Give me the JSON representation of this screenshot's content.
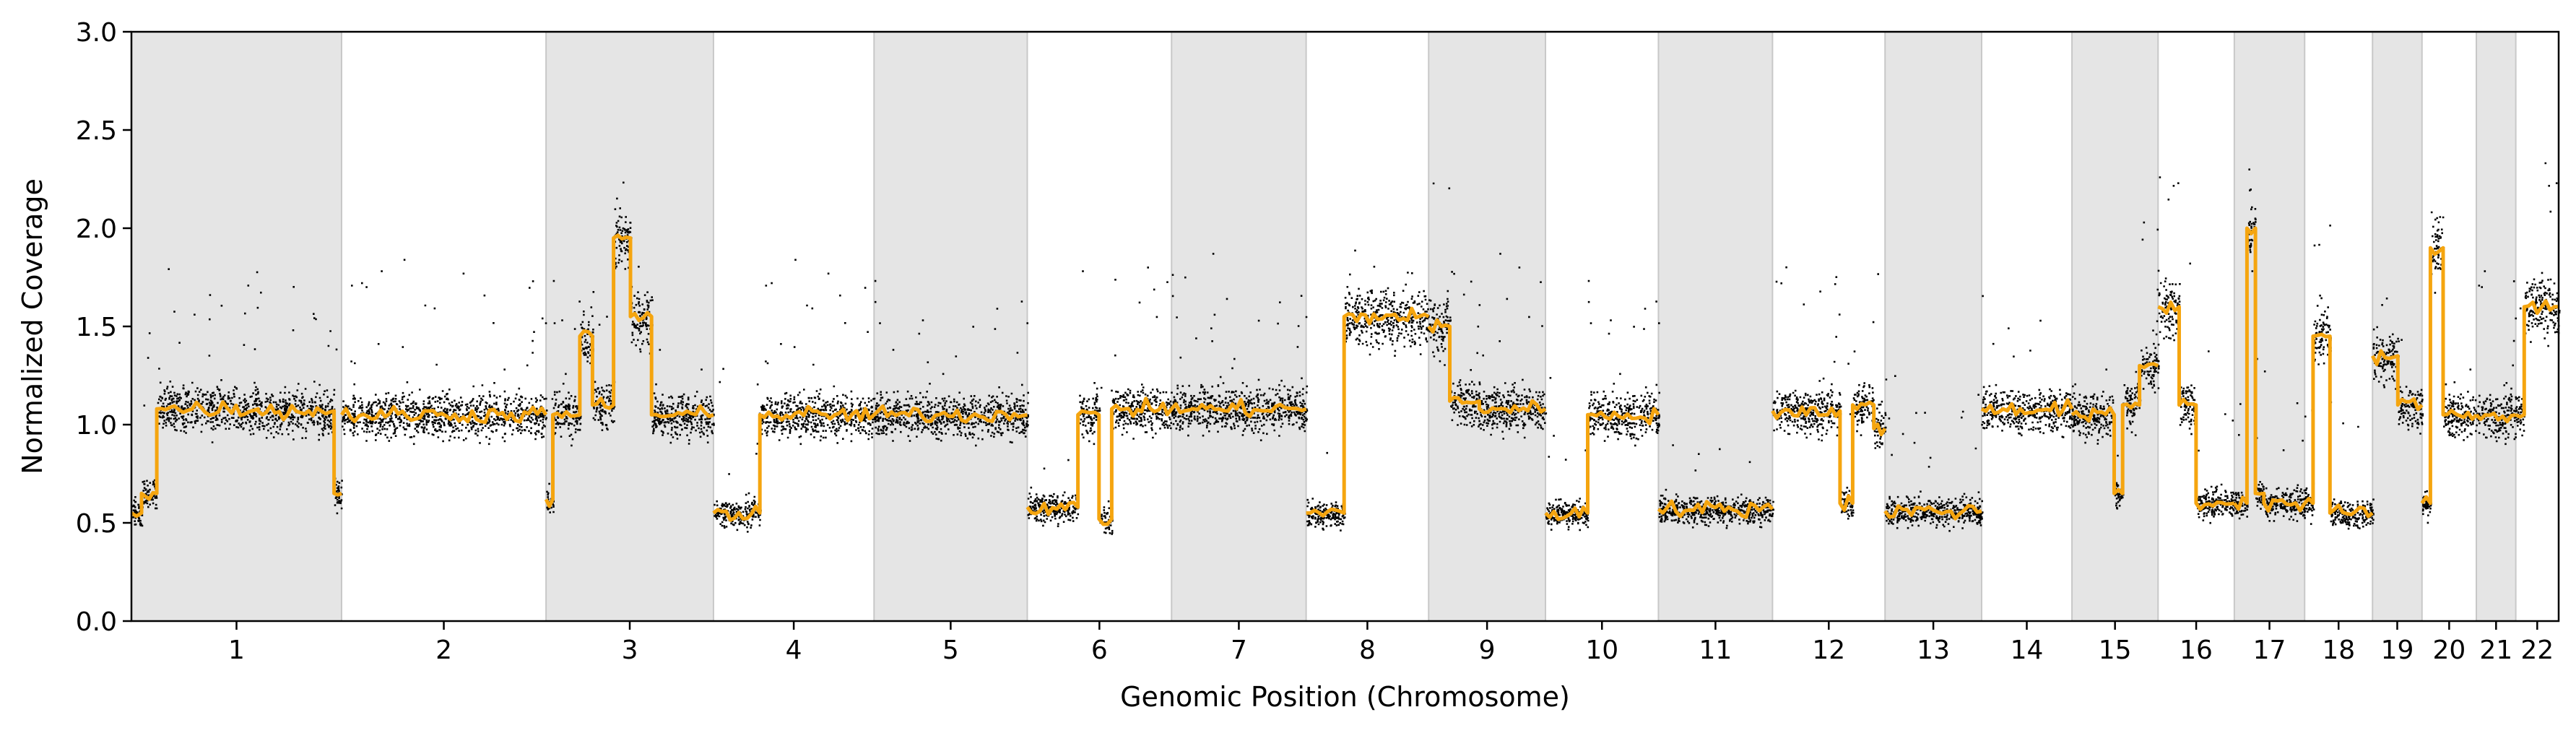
{
  "chart_data": {
    "type": "scatter",
    "xlabel": "Genomic Position (Chromosome)",
    "ylabel": "Normalized Coverage",
    "ylim": [
      0.0,
      3.0
    ],
    "yticks": [
      "0.0",
      "0.5",
      "1.0",
      "1.5",
      "2.0",
      "2.5",
      "3.0"
    ],
    "grid": false,
    "colors": {
      "points": "#000000",
      "segments": "#f5a50f",
      "band": "#e5e5e5",
      "band_edge": "#c8c8c8"
    },
    "chromosomes": [
      {
        "label": "1",
        "start": 0.0,
        "end": 248.9,
        "shaded": true,
        "segments": [
          [
            0,
            12,
            0.55
          ],
          [
            12,
            30,
            0.65
          ],
          [
            30,
            150,
            1.08
          ],
          [
            150,
            240,
            1.07
          ],
          [
            240,
            248.9,
            0.65
          ]
        ]
      },
      {
        "label": "2",
        "start": 248.9,
        "end": 491.1,
        "shaded": false,
        "segments": [
          [
            0,
            242.2,
            1.05
          ]
        ]
      },
      {
        "label": "3",
        "start": 491.1,
        "end": 689.4,
        "shaded": true,
        "segments": [
          [
            0,
            8,
            0.62
          ],
          [
            8,
            40,
            1.05
          ],
          [
            40,
            55,
            1.45
          ],
          [
            55,
            80,
            1.1
          ],
          [
            80,
            100,
            1.95
          ],
          [
            100,
            125,
            1.55
          ],
          [
            125,
            198.3,
            1.05
          ]
        ]
      },
      {
        "label": "4",
        "start": 689.4,
        "end": 879.6,
        "shaded": false,
        "segments": [
          [
            0,
            55,
            0.55
          ],
          [
            55,
            190.2,
            1.05
          ]
        ]
      },
      {
        "label": "5",
        "start": 879.6,
        "end": 1061.1,
        "shaded": true,
        "segments": [
          [
            0,
            181.5,
            1.05
          ]
        ]
      },
      {
        "label": "6",
        "start": 1061.1,
        "end": 1232.0,
        "shaded": false,
        "segments": [
          [
            0,
            60,
            0.58
          ],
          [
            60,
            85,
            1.05
          ],
          [
            85,
            100,
            0.52
          ],
          [
            100,
            170.9,
            1.08
          ]
        ]
      },
      {
        "label": "7",
        "start": 1232.0,
        "end": 1391.4,
        "shaded": true,
        "segments": [
          [
            0,
            159.4,
            1.08
          ]
        ]
      },
      {
        "label": "8",
        "start": 1391.4,
        "end": 1536.5,
        "shaded": false,
        "segments": [
          [
            0,
            45,
            0.55
          ],
          [
            45,
            145.1,
            1.55
          ]
        ]
      },
      {
        "label": "9",
        "start": 1536.5,
        "end": 1674.9,
        "shaded": true,
        "segments": [
          [
            0,
            25,
            1.5
          ],
          [
            25,
            60,
            1.12
          ],
          [
            60,
            138.4,
            1.08
          ]
        ]
      },
      {
        "label": "10",
        "start": 1674.9,
        "end": 1808.7,
        "shaded": false,
        "segments": [
          [
            0,
            50,
            0.55
          ],
          [
            50,
            133.8,
            1.05
          ]
        ]
      },
      {
        "label": "11",
        "start": 1808.7,
        "end": 1943.8,
        "shaded": true,
        "segments": [
          [
            0,
            135.1,
            0.57
          ]
        ]
      },
      {
        "label": "12",
        "start": 1943.8,
        "end": 2077.1,
        "shaded": false,
        "segments": [
          [
            0,
            80,
            1.07
          ],
          [
            80,
            95,
            0.6
          ],
          [
            95,
            120,
            1.1
          ],
          [
            120,
            133.3,
            0.98
          ]
        ]
      },
      {
        "label": "13",
        "start": 2077.1,
        "end": 2191.5,
        "shaded": true,
        "segments": [
          [
            0,
            114.4,
            0.56
          ]
        ]
      },
      {
        "label": "14",
        "start": 2191.5,
        "end": 2298.5,
        "shaded": false,
        "segments": [
          [
            0,
            107,
            1.08
          ]
        ]
      },
      {
        "label": "15",
        "start": 2298.5,
        "end": 2400.5,
        "shaded": true,
        "segments": [
          [
            0,
            50,
            1.05
          ],
          [
            50,
            60,
            0.65
          ],
          [
            60,
            80,
            1.1
          ],
          [
            80,
            102,
            1.3
          ]
        ]
      },
      {
        "label": "16",
        "start": 2400.5,
        "end": 2490.8,
        "shaded": false,
        "segments": [
          [
            0,
            25,
            1.6
          ],
          [
            25,
            45,
            1.1
          ],
          [
            45,
            90.3,
            0.6
          ]
        ]
      },
      {
        "label": "17",
        "start": 2490.8,
        "end": 2574.1,
        "shaded": true,
        "segments": [
          [
            0,
            15,
            0.6
          ],
          [
            15,
            25,
            2.0
          ],
          [
            25,
            35,
            0.65
          ],
          [
            35,
            83.3,
            0.6
          ]
        ]
      },
      {
        "label": "18",
        "start": 2574.1,
        "end": 2654.5,
        "shaded": false,
        "segments": [
          [
            0,
            10,
            0.6
          ],
          [
            10,
            30,
            1.45
          ],
          [
            30,
            80.4,
            0.55
          ]
        ]
      },
      {
        "label": "19",
        "start": 2654.5,
        "end": 2713.1,
        "shaded": true,
        "segments": [
          [
            0,
            30,
            1.35
          ],
          [
            30,
            58.6,
            1.1
          ]
        ]
      },
      {
        "label": "20",
        "start": 2713.1,
        "end": 2777.5,
        "shaded": false,
        "segments": [
          [
            0,
            10,
            0.6
          ],
          [
            10,
            25,
            1.9
          ],
          [
            25,
            64.4,
            1.05
          ]
        ]
      },
      {
        "label": "21",
        "start": 2777.5,
        "end": 2824.2,
        "shaded": true,
        "segments": [
          [
            0,
            46.7,
            1.05
          ]
        ]
      },
      {
        "label": "22",
        "start": 2824.2,
        "end": 2875.0,
        "shaded": false,
        "segments": [
          [
            0,
            10,
            1.05
          ],
          [
            10,
            50.8,
            1.6
          ]
        ]
      }
    ]
  }
}
